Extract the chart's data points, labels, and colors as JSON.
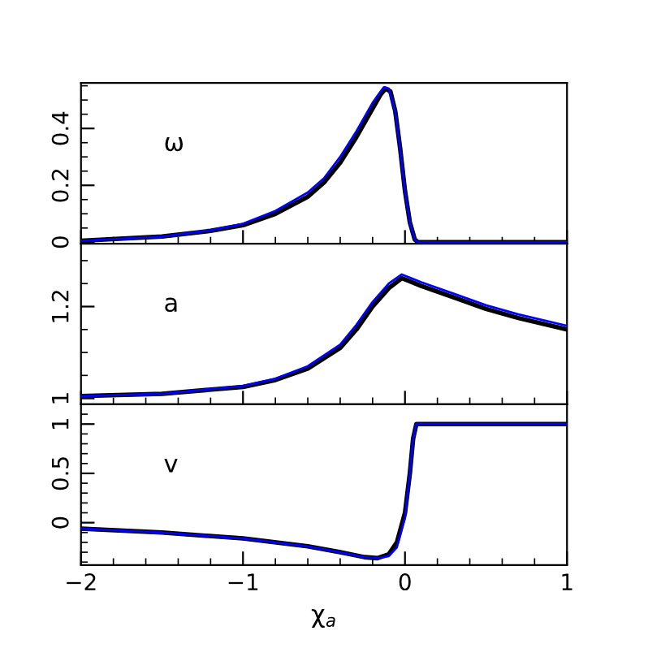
{
  "chart_data": [
    {
      "type": "line",
      "annotations": [
        "ω"
      ],
      "xlim": [
        -2,
        1
      ],
      "xticks": [
        {
          "value": -2,
          "label": null
        },
        {
          "value": -1,
          "label": null
        },
        {
          "value": 0,
          "label": null
        },
        {
          "value": 1,
          "label": null
        }
      ],
      "ylim": [
        -0.005,
        0.56
      ],
      "yticks": [
        0,
        0.2,
        0.4
      ],
      "tick_labels": "y",
      "grid": false,
      "legend": false,
      "series": [
        {
          "color": "#0000ff",
          "x": [
            -2,
            -1.5,
            -1.2,
            -1,
            -0.8,
            -0.6,
            -0.5,
            -0.4,
            -0.3,
            -0.2,
            -0.15,
            -0.13,
            -0.1,
            -0.06,
            -0.03,
            0,
            0.03,
            0.06,
            0.08,
            0.5,
            1
          ],
          "values": [
            0.005,
            0.02,
            0.042,
            0.065,
            0.11,
            0.175,
            0.225,
            0.3,
            0.39,
            0.49,
            0.53,
            0.545,
            0.54,
            0.46,
            0.33,
            0.18,
            0.07,
            0.01,
            0,
            0,
            0
          ]
        },
        {
          "color": "#000000",
          "x": [
            -2,
            -1.5,
            -1.2,
            -1,
            -0.8,
            -0.6,
            -0.5,
            -0.4,
            -0.3,
            -0.2,
            -0.15,
            -0.12,
            -0.09,
            -0.06,
            -0.03,
            0,
            0.03,
            0.06,
            0.08,
            0.5,
            1
          ],
          "values": [
            0.005,
            0.02,
            0.04,
            0.06,
            0.1,
            0.16,
            0.21,
            0.28,
            0.37,
            0.47,
            0.52,
            0.54,
            0.53,
            0.46,
            0.33,
            0.18,
            0.07,
            0.01,
            0,
            0,
            0
          ]
        }
      ]
    },
    {
      "type": "line",
      "annotations": [
        "a"
      ],
      "xlim": [
        -2,
        1
      ],
      "xticks": [
        {
          "value": -2,
          "label": null
        },
        {
          "value": -1,
          "label": null
        },
        {
          "value": 0,
          "label": null
        },
        {
          "value": 1,
          "label": null
        }
      ],
      "ylim": [
        0.987,
        1.337
      ],
      "yticks": [
        1,
        1.2
      ],
      "tick_labels": "y",
      "grid": false,
      "legend": false,
      "series": [
        {
          "color": "#0000ff",
          "x": [
            -2,
            -1.5,
            -1,
            -0.8,
            -0.6,
            -0.4,
            -0.3,
            -0.2,
            -0.1,
            -0.02,
            0.1,
            0.3,
            0.5,
            0.7,
            1
          ],
          "values": [
            1.005,
            1.01,
            1.027,
            1.043,
            1.07,
            1.117,
            1.16,
            1.21,
            1.25,
            1.27,
            1.253,
            1.228,
            1.203,
            1.183,
            1.158
          ]
        },
        {
          "color": "#000000",
          "x": [
            -2,
            -1.5,
            -1,
            -0.8,
            -0.6,
            -0.4,
            -0.3,
            -0.2,
            -0.1,
            -0.02,
            0.1,
            0.3,
            0.5,
            0.7,
            1
          ],
          "values": [
            1.005,
            1.01,
            1.025,
            1.04,
            1.065,
            1.11,
            1.15,
            1.2,
            1.24,
            1.262,
            1.245,
            1.22,
            1.195,
            1.175,
            1.15
          ]
        }
      ]
    },
    {
      "type": "line",
      "annotations": [
        "v"
      ],
      "xlabel": "χ$_{a}$",
      "xlim": [
        -2,
        1
      ],
      "xticks": [
        {
          "value": -2,
          "label": "−2"
        },
        {
          "value": -1,
          "label": "−1"
        },
        0,
        1
      ],
      "ylim": [
        -0.43,
        1.2
      ],
      "yticks": [
        0,
        0.5,
        1
      ],
      "grid": false,
      "legend": false,
      "series": [
        {
          "color": "#0000ff",
          "x": [
            -2,
            -1.5,
            -1,
            -0.6,
            -0.4,
            -0.25,
            -0.17,
            -0.1,
            -0.05,
            0,
            0.03,
            0.05,
            0.07,
            0.5,
            1
          ],
          "values": [
            -0.06,
            -0.1,
            -0.16,
            -0.24,
            -0.3,
            -0.35,
            -0.36,
            -0.34,
            -0.25,
            0.05,
            0.5,
            0.85,
            1,
            1,
            1
          ]
        },
        {
          "color": "#000000",
          "x": [
            -2,
            -1.5,
            -1,
            -0.6,
            -0.4,
            -0.25,
            -0.17,
            -0.1,
            -0.05,
            0,
            0.03,
            0.05,
            0.07,
            0.5,
            1
          ],
          "values": [
            -0.06,
            -0.1,
            -0.16,
            -0.24,
            -0.3,
            -0.35,
            -0.36,
            -0.32,
            -0.2,
            0.1,
            0.5,
            0.85,
            1,
            1,
            1
          ]
        }
      ]
    }
  ]
}
